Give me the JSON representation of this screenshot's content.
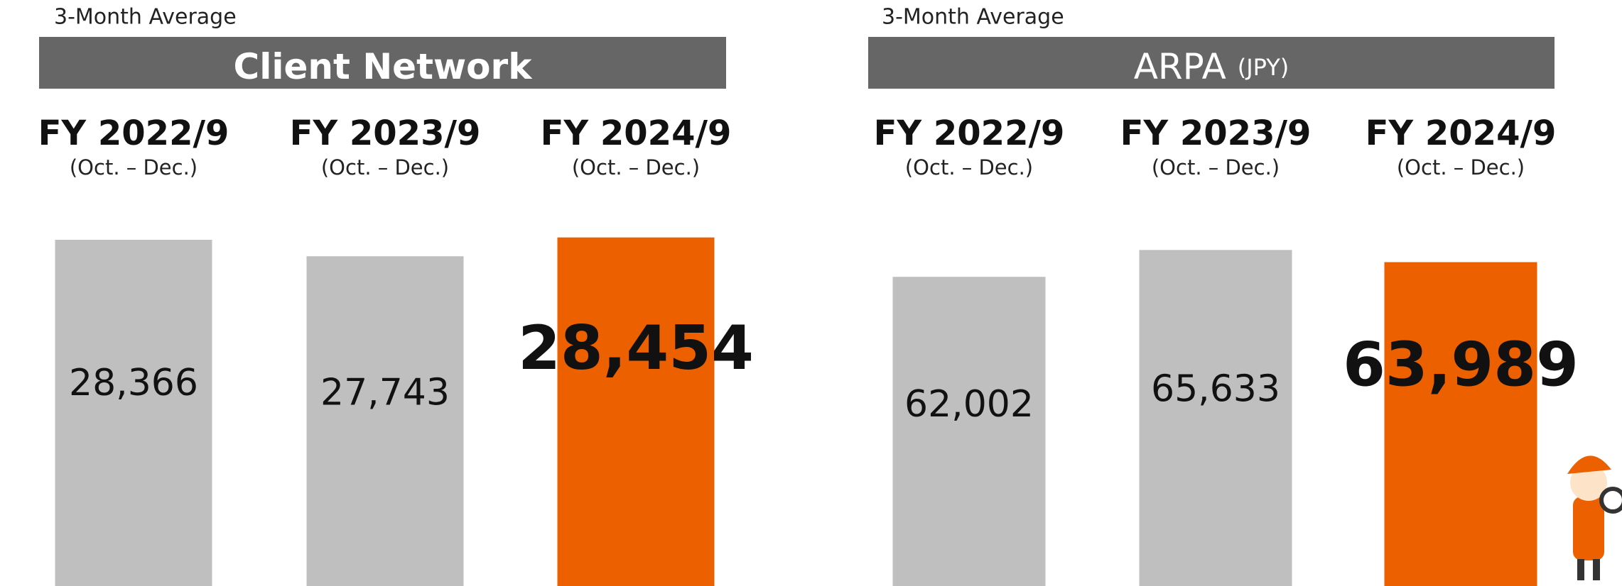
{
  "chart_data": [
    {
      "type": "bar",
      "subtitle": "3-Month Average",
      "title": "Client Network",
      "categories": [
        "FY 2022/9",
        "FY 2023/9",
        "FY 2024/9"
      ],
      "period": "(Oct. – Dec.)",
      "values": [
        28366,
        27743,
        28454
      ],
      "value_labels": [
        "28,366",
        "27,743",
        "28,454"
      ],
      "colors": [
        "#bfbfbf",
        "#bfbfbf",
        "#ec6000"
      ],
      "ylim": [
        15300,
        30400
      ]
    },
    {
      "type": "bar",
      "subtitle": "3-Month Average",
      "title": "ARPA",
      "unit": "(JPY)",
      "categories": [
        "FY 2022/9",
        "FY 2023/9",
        "FY 2024/9"
      ],
      "period": "(Oct. – Dec.)",
      "values": [
        62002,
        65633,
        63989
      ],
      "value_labels": [
        "62,002",
        "65,633",
        "63,989"
      ],
      "colors": [
        "#bfbfbf",
        "#bfbfbf",
        "#ec6000"
      ],
      "ylim": [
        20200,
        74300
      ]
    }
  ]
}
